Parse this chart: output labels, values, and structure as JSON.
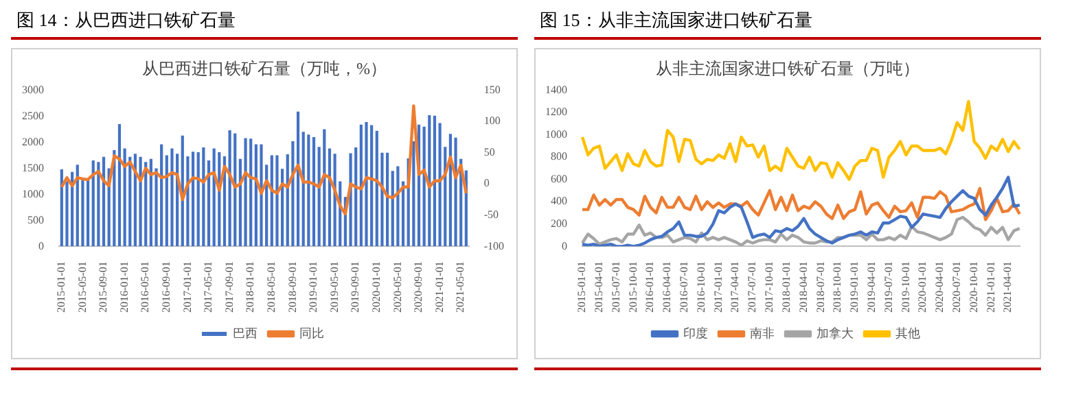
{
  "chart_data": [
    {
      "type": "bar",
      "title": "图 14：从巴西进口铁矿石量",
      "subtitle": "从巴西进口铁矿石量（万吨，%）",
      "categories": [
        "2015-01-01",
        null,
        null,
        null,
        "2015-05-01",
        null,
        null,
        null,
        "2015-09-01",
        null,
        null,
        null,
        "2016-01-01",
        null,
        null,
        null,
        "2016-05-01",
        null,
        null,
        null,
        "2016-09-01",
        null,
        null,
        null,
        "2017-01-01",
        null,
        null,
        null,
        "2017-05-01",
        null,
        null,
        null,
        "2017-09-01",
        null,
        null,
        null,
        "2018-01-01",
        null,
        null,
        null,
        "2018-05-01",
        null,
        null,
        null,
        "2018-09-01",
        null,
        null,
        null,
        "2019-01-01",
        null,
        null,
        null,
        "2019-05-01",
        null,
        null,
        null,
        "2019-09-01",
        null,
        null,
        null,
        "2020-01-01",
        null,
        null,
        null,
        "2020-05-01",
        null,
        null,
        null,
        "2020-09-01",
        null,
        null,
        null,
        "2021-01-01",
        null,
        null,
        null,
        "2021-05-01",
        null
      ],
      "series": [
        {
          "name": "巴西",
          "color": "#4472c4",
          "values": [
            1480,
            1250,
            1430,
            1570,
            1300,
            1280,
            1650,
            1620,
            1720,
            1500,
            1850,
            2350,
            1880,
            1720,
            1780,
            1720,
            1620,
            1680,
            1500,
            1960,
            1750,
            1880,
            1780,
            2130,
            1730,
            1820,
            1810,
            1900,
            1650,
            1880,
            1810,
            1730,
            2230,
            2170,
            1680,
            2080,
            2070,
            1960,
            1960,
            1570,
            1750,
            1750,
            1490,
            1770,
            2020,
            2590,
            2200,
            2150,
            2100,
            1910,
            2250,
            1880,
            1780,
            1250,
            950,
            1790,
            1900,
            2340,
            2390,
            2330,
            2220,
            1800,
            1800,
            1450,
            1540,
            1250,
            1690,
            2020,
            2340,
            2300,
            2520,
            2510,
            2370,
            1910,
            2160,
            2090,
            1680,
            1460
          ]
        },
        {
          "name": "同比",
          "type": "line",
          "axis": "y2",
          "color": "#ed7d31",
          "values": [
            -5,
            10,
            -3,
            10,
            8,
            7,
            15,
            20,
            5,
            -3,
            45,
            40,
            28,
            35,
            20,
            5,
            25,
            15,
            18,
            10,
            12,
            18,
            15,
            -25,
            0,
            10,
            8,
            3,
            15,
            18,
            -10,
            28,
            15,
            -5,
            0,
            18,
            10,
            8,
            -15,
            5,
            -10,
            -15,
            0,
            -5,
            15,
            30,
            3,
            3,
            0,
            -5,
            15,
            10,
            -10,
            -35,
            -48,
            0,
            -5,
            -8,
            10,
            8,
            5,
            -5,
            -20,
            -22,
            -15,
            -5,
            -5,
            125,
            15,
            22,
            -5,
            5,
            5,
            15,
            43,
            10,
            30,
            -15
          ]
        }
      ],
      "ylim": [
        0,
        3000
      ],
      "yticks": [
        0,
        500,
        1000,
        1500,
        2000,
        2500,
        3000
      ],
      "y2lim": [
        -100,
        150
      ],
      "y2ticks": [
        -100,
        -50,
        0,
        50,
        100,
        150
      ],
      "legend": "bottom"
    },
    {
      "type": "line",
      "title": "图 15：从非主流国家进口铁矿石量",
      "subtitle": "从非主流国家进口铁矿石量（万吨）",
      "categories": [
        "2015-01-01",
        null,
        null,
        "2015-04-01",
        null,
        null,
        "2015-07-01",
        null,
        null,
        "2015-10-01",
        null,
        null,
        "2016-01-01",
        null,
        null,
        "2016-04-01",
        null,
        null,
        "2016-07-01",
        null,
        null,
        "2016-10-01",
        null,
        null,
        "2017-01-01",
        null,
        null,
        "2017-04-01",
        null,
        null,
        "2017-07-01",
        null,
        null,
        "2017-10-01",
        null,
        null,
        "2018-01-01",
        null,
        null,
        "2018-04-01",
        null,
        null,
        "2018-07-01",
        null,
        null,
        "2018-10-01",
        null,
        null,
        "2019-01-01",
        null,
        null,
        "2019-04-01",
        null,
        null,
        "2019-07-01",
        null,
        null,
        "2019-10-01",
        null,
        null,
        "2020-01-01",
        null,
        null,
        "2020-04-01",
        null,
        null,
        "2020-07-01",
        null,
        null,
        "2020-10-01",
        null,
        null,
        "2021-01-01",
        null,
        null,
        "2021-04-01",
        null,
        null
      ],
      "series": [
        {
          "name": "印度",
          "color": "#4472c4",
          "values": [
            20,
            10,
            20,
            0,
            10,
            20,
            0,
            0,
            10,
            0,
            10,
            30,
            60,
            80,
            90,
            130,
            160,
            220,
            100,
            100,
            90,
            90,
            120,
            200,
            320,
            300,
            350,
            380,
            350,
            220,
            80,
            100,
            110,
            80,
            140,
            130,
            160,
            140,
            180,
            250,
            160,
            110,
            80,
            50,
            30,
            60,
            80,
            100,
            110,
            130,
            100,
            130,
            120,
            210,
            210,
            240,
            270,
            260,
            170,
            220,
            290,
            280,
            270,
            260,
            340,
            400,
            450,
            500,
            450,
            430,
            330,
            280,
            370,
            440,
            520,
            620,
            360,
            370
          ]
        },
        {
          "name": "南非",
          "color": "#ed7d31",
          "values": [
            330,
            330,
            460,
            370,
            420,
            370,
            420,
            420,
            350,
            330,
            280,
            450,
            350,
            300,
            440,
            350,
            350,
            440,
            350,
            330,
            450,
            330,
            400,
            350,
            390,
            350,
            380,
            380,
            360,
            400,
            330,
            280,
            390,
            500,
            330,
            440,
            320,
            460,
            320,
            360,
            340,
            400,
            360,
            290,
            250,
            370,
            250,
            310,
            330,
            490,
            290,
            370,
            390,
            320,
            260,
            360,
            310,
            320,
            390,
            260,
            440,
            440,
            430,
            490,
            450,
            310,
            320,
            330,
            360,
            380,
            520,
            240,
            320,
            430,
            310,
            320,
            380,
            290
          ]
        },
        {
          "name": "加拿大",
          "color": "#a5a5a5",
          "values": [
            30,
            110,
            70,
            20,
            40,
            60,
            70,
            40,
            110,
            110,
            190,
            100,
            120,
            80,
            80,
            100,
            40,
            60,
            80,
            70,
            40,
            120,
            60,
            80,
            60,
            80,
            60,
            40,
            10,
            50,
            30,
            50,
            60,
            60,
            40,
            110,
            60,
            100,
            80,
            40,
            30,
            30,
            50,
            40,
            40,
            80,
            80,
            100,
            100,
            100,
            60,
            110,
            60,
            60,
            80,
            60,
            100,
            70,
            180,
            130,
            120,
            100,
            80,
            60,
            80,
            110,
            240,
            260,
            220,
            170,
            150,
            100,
            170,
            120,
            170,
            60,
            140,
            160
          ]
        },
        {
          "name": "其他",
          "color": "#ffc000",
          "values": [
            980,
            820,
            880,
            900,
            700,
            760,
            820,
            680,
            830,
            740,
            720,
            860,
            760,
            720,
            730,
            1040,
            980,
            760,
            960,
            950,
            780,
            740,
            780,
            770,
            820,
            790,
            920,
            760,
            980,
            900,
            910,
            800,
            900,
            680,
            720,
            680,
            880,
            800,
            720,
            700,
            800,
            680,
            750,
            740,
            620,
            750,
            680,
            600,
            720,
            770,
            770,
            880,
            860,
            620,
            800,
            860,
            940,
            820,
            900,
            900,
            860,
            860,
            860,
            880,
            830,
            950,
            1110,
            1040,
            1300,
            940,
            880,
            790,
            900,
            860,
            960,
            850,
            940,
            870
          ]
        }
      ],
      "ylim": [
        0,
        1400
      ],
      "yticks": [
        0,
        200,
        400,
        600,
        800,
        1000,
        1200,
        1400
      ],
      "legend": "bottom"
    }
  ]
}
